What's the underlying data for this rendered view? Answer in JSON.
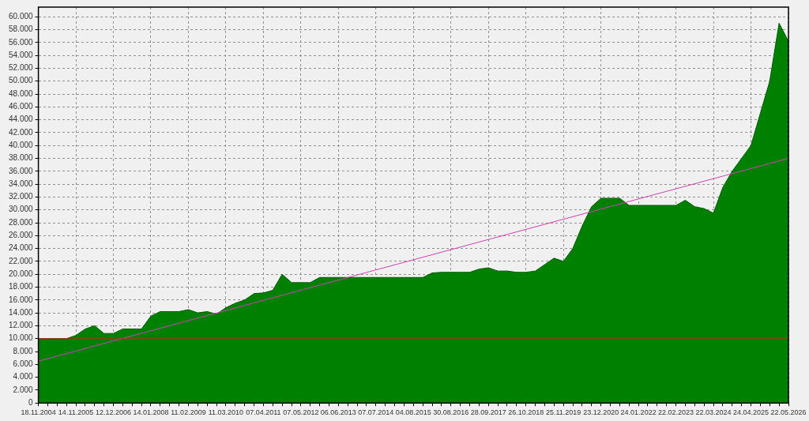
{
  "chart_data": {
    "type": "area",
    "categories": [
      "18.11.2004",
      null,
      null,
      null,
      "14.11.2005",
      null,
      null,
      null,
      "12.12.2006",
      null,
      null,
      null,
      "14.01.2008",
      null,
      null,
      null,
      "11.02.2009",
      null,
      null,
      null,
      "11.03.2010",
      null,
      null,
      null,
      "07.04.2011",
      null,
      null,
      null,
      "07.05.2012",
      null,
      null,
      null,
      "06.06.2013",
      null,
      null,
      null,
      "07.07.2014",
      null,
      null,
      null,
      "04.08.2015",
      null,
      null,
      null,
      "30.08.2016",
      null,
      null,
      null,
      "28.09.2017",
      null,
      null,
      null,
      "26.10.2018",
      null,
      null,
      null,
      "25.11.2019",
      null,
      null,
      null,
      "23.12.2020",
      null,
      null,
      null,
      "24.01.2022",
      null,
      null,
      null,
      "22.02.2023",
      null,
      null,
      null,
      "22.03.2024",
      null,
      null,
      null,
      "24.04.2025",
      null,
      null,
      null,
      "22.05.2026"
    ],
    "series": [
      {
        "color": "#008000",
        "values": [
          10000,
          10000,
          10000,
          10000,
          10500,
          11500,
          12000,
          10800,
          10800,
          11500,
          11500,
          11500,
          13500,
          14200,
          14200,
          14200,
          14500,
          14000,
          14200,
          13800,
          14800,
          15500,
          16000,
          17000,
          17100,
          17500,
          20000,
          18700,
          18700,
          18700,
          19500,
          19500,
          19500,
          19500,
          19500,
          19500,
          19500,
          19500,
          19500,
          19500,
          19500,
          19500,
          20200,
          20300,
          20300,
          20300,
          20300,
          20800,
          21000,
          20500,
          20500,
          20300,
          20300,
          20500,
          21500,
          22500,
          22000,
          24000,
          27500,
          30500,
          31800,
          31800,
          31800,
          30700,
          30700,
          30700,
          30700,
          30700,
          30700,
          31500,
          30500,
          30200,
          29500,
          33500,
          36000,
          38000,
          40000,
          45000,
          50000,
          59000,
          56200
        ]
      },
      {
        "type": "line",
        "color": "#d040b0",
        "values": [
          6500,
          null,
          null,
          null,
          null,
          null,
          null,
          null,
          null,
          null,
          null,
          null,
          null,
          null,
          null,
          null,
          null,
          null,
          null,
          null,
          null,
          null,
          null,
          null,
          null,
          null,
          null,
          null,
          null,
          null,
          null,
          null,
          null,
          null,
          null,
          null,
          null,
          null,
          null,
          null,
          null,
          null,
          null,
          null,
          null,
          null,
          null,
          null,
          null,
          null,
          null,
          null,
          null,
          null,
          null,
          null,
          null,
          null,
          null,
          null,
          null,
          null,
          null,
          null,
          null,
          null,
          null,
          null,
          null,
          null,
          null,
          null,
          null,
          null,
          null,
          null,
          null,
          null,
          null,
          null,
          38000
        ]
      }
    ],
    "ref_lines": [
      {
        "axis": "y",
        "value": 10000,
        "color": "#b03020"
      }
    ],
    "ylim": [
      0,
      61500
    ],
    "yticks": [
      0,
      {
        "value": 2000,
        "label": "2.000"
      },
      {
        "value": 4000,
        "label": "4.000"
      },
      {
        "value": 6000,
        "label": "6.000"
      },
      {
        "value": 8000,
        "label": "8.000"
      },
      {
        "value": 10000,
        "label": "10.000"
      },
      {
        "value": 12000,
        "label": "12.000"
      },
      {
        "value": 14000,
        "label": "14.000"
      },
      {
        "value": 16000,
        "label": "16.000"
      },
      {
        "value": 18000,
        "label": "18.000"
      },
      {
        "value": 20000,
        "label": "20.000"
      },
      {
        "value": 22000,
        "label": "22.000"
      },
      {
        "value": 24000,
        "label": "24.000"
      },
      {
        "value": 26000,
        "label": "26.000"
      },
      {
        "value": 28000,
        "label": "28.000"
      },
      {
        "value": 30000,
        "label": "30.000"
      },
      {
        "value": 32000,
        "label": "32.000"
      },
      {
        "value": 34000,
        "label": "34.000"
      },
      {
        "value": 36000,
        "label": "36.000"
      },
      {
        "value": 38000,
        "label": "38.000"
      },
      {
        "value": 40000,
        "label": "40.000"
      },
      {
        "value": 42000,
        "label": "42.000"
      },
      {
        "value": 44000,
        "label": "44.000"
      },
      {
        "value": 46000,
        "label": "46.000"
      },
      {
        "value": 48000,
        "label": "48.000"
      },
      {
        "value": 50000,
        "label": "50.000"
      },
      {
        "value": 52000,
        "label": "52.000"
      },
      {
        "value": 54000,
        "label": "54.000"
      },
      {
        "value": 56000,
        "label": "56.000"
      },
      {
        "value": 58000,
        "label": "58.000"
      },
      {
        "value": 60000,
        "label": "60.000"
      }
    ],
    "grid": true,
    "legend": false,
    "marker": "none",
    "line_style": "solid"
  }
}
